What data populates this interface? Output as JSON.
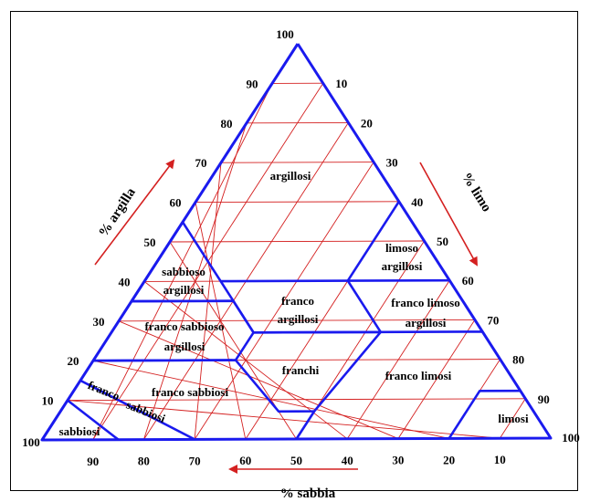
{
  "colors": {
    "grid": "#d42020",
    "boundary": "#1a1aee",
    "arrow": "#d42020",
    "text": "#000000"
  },
  "corners": {
    "top": "100",
    "left": "100",
    "right": "100"
  },
  "ticks": {
    "argilla": [
      "10",
      "20",
      "30",
      "40",
      "50",
      "60",
      "70",
      "80",
      "90"
    ],
    "limo": [
      "10",
      "20",
      "30",
      "40",
      "50",
      "60",
      "70",
      "80",
      "90"
    ],
    "sabbia": [
      "90",
      "80",
      "70",
      "60",
      "50",
      "40",
      "30",
      "20",
      "10"
    ]
  },
  "axis_labels": {
    "argilla": "% argilla",
    "limo": "% limo",
    "sabbia": "% sabbia"
  },
  "zones": {
    "argillosi": "argillosi",
    "limoso_argillosi_1": "limoso",
    "limoso_argillosi_2": "argillosi",
    "sabbioso_argillosi_1": "sabbioso",
    "sabbioso_argillosi_2": "argillosi",
    "franco_argillosi_1": "franco",
    "franco_argillosi_2": "argillosi",
    "franco_limoso_argillosi_1": "franco limoso",
    "franco_limoso_argillosi_2": "argillosi",
    "franco_sabbioso_argillosi_1": "franco sabbioso",
    "franco_sabbioso_argillosi_2": "argillosi",
    "franchi": "franchi",
    "franco_limosi": "franco limosi",
    "franco_sabbiosi": "franco sabbiosi",
    "sabbiosi_franchi_1": "franco",
    "sabbiosi_franchi_2": "sabbiosi",
    "sabbiosi": "sabbiosi",
    "limosi": "limosi"
  }
}
